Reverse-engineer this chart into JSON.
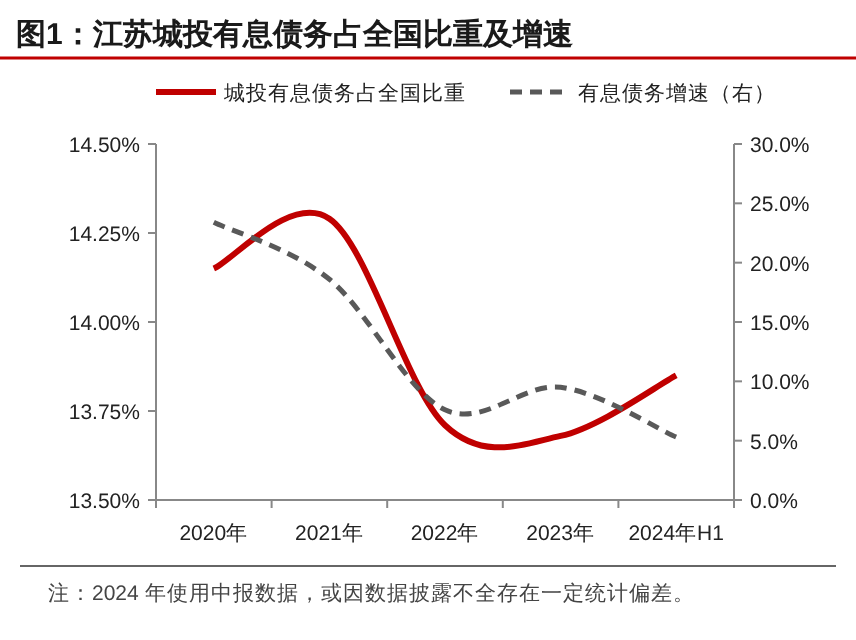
{
  "chart_data": {
    "type": "line",
    "title": "图1：江苏城投有息债务占全国比重及增速",
    "categories": [
      "2020年",
      "2021年",
      "2022年",
      "2023年",
      "2024年H1"
    ],
    "series": [
      {
        "name": "城投有息债务占全国比重",
        "color": "#c00000",
        "values": [
          14.15,
          14.29,
          13.71,
          13.68,
          13.85
        ],
        "line_style": "solid"
      },
      {
        "name": "有息债务增速（右）",
        "color": "#595959",
        "values": [
          23.4,
          18.6,
          7.6,
          9.5,
          5.3
        ],
        "axis": "y2",
        "line_style": "dashed"
      }
    ],
    "ylim": [
      13.5,
      14.5
    ],
    "yticks": [
      {
        "value": 13.5,
        "label": "13.50%"
      },
      {
        "value": 13.75,
        "label": "13.75%"
      },
      {
        "value": 14.0,
        "label": "14.00%"
      },
      {
        "value": 14.25,
        "label": "14.25%"
      },
      {
        "value": 14.5,
        "label": "14.50%"
      }
    ],
    "y2lim": [
      0,
      30
    ],
    "y2ticks": [
      {
        "value": 0,
        "label": "0.0%"
      },
      {
        "value": 5,
        "label": "5.0%"
      },
      {
        "value": 10,
        "label": "10.0%"
      },
      {
        "value": 15,
        "label": "15.0%"
      },
      {
        "value": 20,
        "label": "20.0%"
      },
      {
        "value": 25,
        "label": "25.0%"
      },
      {
        "value": 30,
        "label": "30.0%"
      }
    ],
    "legend": "top",
    "annotations": [
      "注：2024 年使用中报数据，或因数据披露不全存在一定统计偏差。"
    ]
  }
}
